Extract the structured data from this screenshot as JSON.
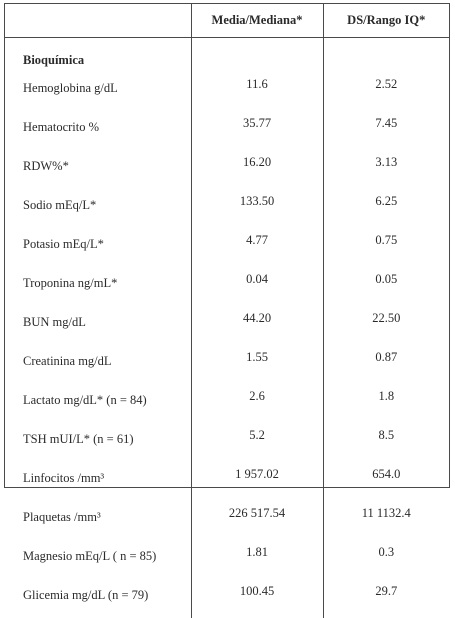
{
  "header": {
    "col1": "",
    "col2": "Media/Mediana*",
    "col3": "DS/Rango IQ*"
  },
  "section": "Bioquímica",
  "rows": [
    {
      "label": "Hemoglobina g/dL",
      "value": "11.6",
      "spread": "2.52"
    },
    {
      "label": "Hematocrito %",
      "value": "35.77",
      "spread": "7.45"
    },
    {
      "label": "RDW%*",
      "value": "16.20",
      "spread": "3.13"
    },
    {
      "label": "Sodio mEq/L*",
      "value": "133.50",
      "spread": "6.25"
    },
    {
      "label": "Potasio mEq/L*",
      "value": "4.77",
      "spread": "0.75"
    },
    {
      "label": "Troponina ng/mL*",
      "value": "0.04",
      "spread": "0.05"
    },
    {
      "label": "BUN mg/dL",
      "value": "44.20",
      "spread": "22.50"
    },
    {
      "label": "Creatinina mg/dL",
      "value": "1.55",
      "spread": "0.87"
    },
    {
      "label": "Lactato mg/dL* (n = 84)",
      "value": "2.6",
      "spread": "1.8"
    },
    {
      "label": "TSH mUI/L* (n = 61)",
      "value": "5.2",
      "spread": "8.5"
    },
    {
      "label": "Linfocitos /mm³",
      "value": "1 957.02",
      "spread": "654.0"
    },
    {
      "label": "Plaquetas /mm³",
      "value": "226 517.54",
      "spread": "11 1132.4"
    },
    {
      "label": "Magnesio mEq/L ( n = 85)",
      "value": "1.81",
      "spread": "0.3"
    },
    {
      "label": "Glicemia mg/dL (n = 79)",
      "value": "100.45",
      "spread": "29.7"
    }
  ]
}
